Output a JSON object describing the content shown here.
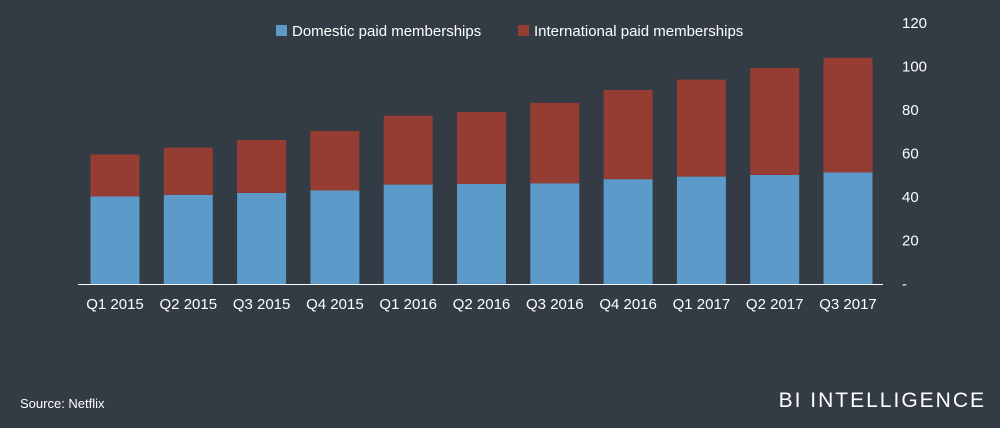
{
  "chart_data": {
    "type": "bar",
    "stacked": true,
    "categories": [
      "Q1 2015",
      "Q2 2015",
      "Q3 2015",
      "Q4 2015",
      "Q1 2016",
      "Q2 2016",
      "Q3 2016",
      "Q4 2016",
      "Q1 2017",
      "Q2 2017",
      "Q3 2017"
    ],
    "series": [
      {
        "name": "Domestic paid memberships",
        "color": "#5b9ac9",
        "values": [
          40.3,
          41.0,
          41.9,
          43.0,
          45.7,
          46.0,
          46.3,
          48.2,
          49.4,
          50.1,
          51.3
        ]
      },
      {
        "name": "International paid memberships",
        "color": "#953d32",
        "values": [
          19.3,
          21.7,
          24.3,
          27.4,
          31.7,
          33.1,
          37.0,
          41.0,
          44.6,
          49.2,
          52.7
        ]
      }
    ],
    "y_ticks": [
      "-",
      "20",
      "40",
      "60",
      "80",
      "100",
      "120"
    ],
    "ylim": [
      0,
      120
    ],
    "grid": false,
    "legend_position": "top"
  },
  "footer": {
    "source": "Source: Netflix",
    "brand": "BI INTELLIGENCE"
  }
}
